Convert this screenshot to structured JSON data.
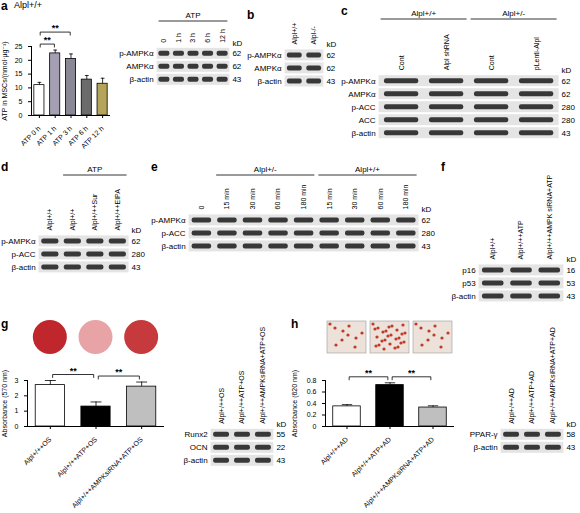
{
  "chart_data": [
    {
      "panel": "a",
      "type": "bar",
      "title": "Alpl+/+",
      "ylabel": "ATP in MSCs/(nmol·μg⁻¹)",
      "categories": [
        "ATP 0 h",
        "ATP 1 h",
        "ATP 3 h",
        "ATP 6 h",
        "ATP 12 h"
      ],
      "values": [
        11,
        22.5,
        20.5,
        13,
        11.5
      ],
      "errors": [
        1,
        1.2,
        1.8,
        1.5,
        2
      ],
      "colors": [
        "#ffffff",
        "#a49fb3",
        "#8a8797",
        "#6b6b6b",
        "#b5a55a"
      ],
      "ylim": [
        0,
        25
      ],
      "yticks": [
        0,
        5,
        10,
        15,
        20,
        25
      ],
      "significance": [
        {
          "from": "ATP 0 h",
          "to": "ATP 1 h",
          "label": "**"
        },
        {
          "from": "ATP 0 h",
          "to": "ATP 3 h",
          "label": "**"
        }
      ]
    },
    {
      "panel": "g",
      "type": "bar",
      "ylabel": "Absorbance (570 nm)",
      "categories": [
        "Alpl+/++OS",
        "Alpl+/++ATP+OS",
        "Alpl+/++AMPKsiRNA+ATP+OS"
      ],
      "values": [
        2.7,
        1.3,
        2.6
      ],
      "errors": [
        0.3,
        0.3,
        0.3
      ],
      "colors": [
        "#ffffff",
        "#000000",
        "#bfbfbf"
      ],
      "ylim": [
        0,
        3
      ],
      "yticks": [
        0,
        1,
        2,
        3
      ],
      "significance": [
        {
          "from": "Alpl+/++OS",
          "to": "Alpl+/++ATP+OS",
          "label": "**"
        },
        {
          "from": "Alpl+/++ATP+OS",
          "to": "Alpl+/++AMPKsiRNA+ATP+OS",
          "label": "**"
        }
      ]
    },
    {
      "panel": "h",
      "type": "bar",
      "ylabel": "Absorbance (620 nm)",
      "categories": [
        "Alpl+/++AD",
        "Alpl+/++ATP+AD",
        "Alpl+/++AMPKsiRNA+ATP+AD"
      ],
      "values": [
        0.35,
        0.72,
        0.33
      ],
      "errors": [
        0.03,
        0.04,
        0.03
      ],
      "colors": [
        "#ffffff",
        "#000000",
        "#bfbfbf"
      ],
      "ylim": [
        0,
        0.8
      ],
      "yticks": [
        0,
        0.2,
        0.4,
        0.6,
        0.8
      ],
      "significance": [
        {
          "from": "Alpl+/++AD",
          "to": "Alpl+/++ATP+AD",
          "label": "**"
        },
        {
          "from": "Alpl+/++ATP+AD",
          "to": "Alpl+/++AMPKsiRNA+ATP+AD",
          "label": "**"
        }
      ]
    }
  ],
  "blots": [
    {
      "kd_label": "kD",
      "columns": [
        {
          "label": "0",
          "group": "ATP"
        },
        {
          "label": "1 h",
          "group": "ATP"
        },
        {
          "label": "3 h",
          "group": "ATP"
        },
        {
          "label": "6 h",
          "group": "ATP"
        },
        {
          "label": "12 h",
          "group": "ATP"
        }
      ],
      "rows": [
        {
          "name": "p-AMPKα",
          "kd": 62
        },
        {
          "name": "AMPKα",
          "kd": 62
        },
        {
          "name": "β-actin",
          "kd": 43
        }
      ]
    },
    {
      "panel": "b",
      "kd_label": "kD",
      "columns": [
        {
          "label": "Alpl+/+"
        },
        {
          "label": "Alpl-/-"
        }
      ],
      "rows": [
        {
          "name": "p-AMPKα",
          "kd": 62
        },
        {
          "name": "AMPKα",
          "kd": 62
        },
        {
          "name": "β-actin",
          "kd": 43
        }
      ]
    },
    {
      "panel": "c",
      "kd_label": "kD",
      "columns": [
        {
          "label": "Cont",
          "group": "Alpl+/+"
        },
        {
          "label": "Alpl shRNA",
          "group": "Alpl+/+"
        },
        {
          "label": "Cont",
          "group": "Alpl+/-"
        },
        {
          "label": "pLenti-Alpl",
          "group": "Alpl+/-"
        }
      ],
      "rows": [
        {
          "name": "p-AMPKα",
          "kd": 62
        },
        {
          "name": "AMPKα",
          "kd": 62
        },
        {
          "name": "p-ACC",
          "kd": 280
        },
        {
          "name": "ACC",
          "kd": 280
        },
        {
          "name": "β-actin",
          "kd": 43
        }
      ]
    },
    {
      "panel": "d",
      "kd_label": "kD",
      "columns": [
        {
          "label": "Alpl+/+"
        },
        {
          "label": "Alpl+/+",
          "group": "ATP"
        },
        {
          "label": "Alpl+/++Sur",
          "group": "ATP"
        },
        {
          "label": "Alpl+/++EIPA",
          "group": "ATP"
        }
      ],
      "rows": [
        {
          "name": "p-AMPKα",
          "kd": 62
        },
        {
          "name": "p-ACC",
          "kd": 280
        },
        {
          "name": "β-actin",
          "kd": 43
        }
      ]
    },
    {
      "panel": "e",
      "kd_label": "kD",
      "columns": [
        {
          "label": "0"
        },
        {
          "label": "15 min",
          "group": "Alpl+/-"
        },
        {
          "label": "30 min",
          "group": "Alpl+/-"
        },
        {
          "label": "60 min",
          "group": "Alpl+/-"
        },
        {
          "label": "180 min",
          "group": "Alpl+/-"
        },
        {
          "label": "15 min",
          "group": "Alpl+/+"
        },
        {
          "label": "30 min",
          "group": "Alpl+/+"
        },
        {
          "label": "60 min",
          "group": "Alpl+/+"
        },
        {
          "label": "180 min",
          "group": "Alpl+/+"
        }
      ],
      "rows": [
        {
          "name": "p-AMPKα",
          "kd": 62
        },
        {
          "name": "p-ACC",
          "kd": 280
        },
        {
          "name": "β-actin",
          "kd": 43
        }
      ]
    },
    {
      "panel": "f",
      "kd_label": "kD",
      "columns": [
        {
          "label": "Alpl+/+"
        },
        {
          "label": "Alpl+/++ATP"
        },
        {
          "label": "Alpl+/++AMPK siRNA+ATP"
        }
      ],
      "rows": [
        {
          "name": "p16",
          "kd": 16
        },
        {
          "name": "p53",
          "kd": 53
        },
        {
          "name": "β-actin",
          "kd": 43
        }
      ]
    },
    {
      "kd_label": "kD",
      "columns": [
        {
          "label": "Alpl+/++OS"
        },
        {
          "label": "Alpl+/++ATP+OS"
        },
        {
          "label": "Alpl+/++AMPKsiRNA+ATP+OS"
        }
      ],
      "rows": [
        {
          "name": "Runx2",
          "kd": 55
        },
        {
          "name": "OCN",
          "kd": 22
        },
        {
          "name": "β-actin",
          "kd": 43
        }
      ]
    },
    {
      "kd_label": "kD",
      "columns": [
        {
          "label": "Alpl+/++AD"
        },
        {
          "label": "Alpl+/++ATP+AD"
        },
        {
          "label": "Alpl+/++AMPKsiRNA+ATP+AD"
        }
      ],
      "rows": [
        {
          "name": "PPAR-γ",
          "kd": 58
        },
        {
          "name": "β-actin",
          "kd": 43
        }
      ]
    }
  ]
}
